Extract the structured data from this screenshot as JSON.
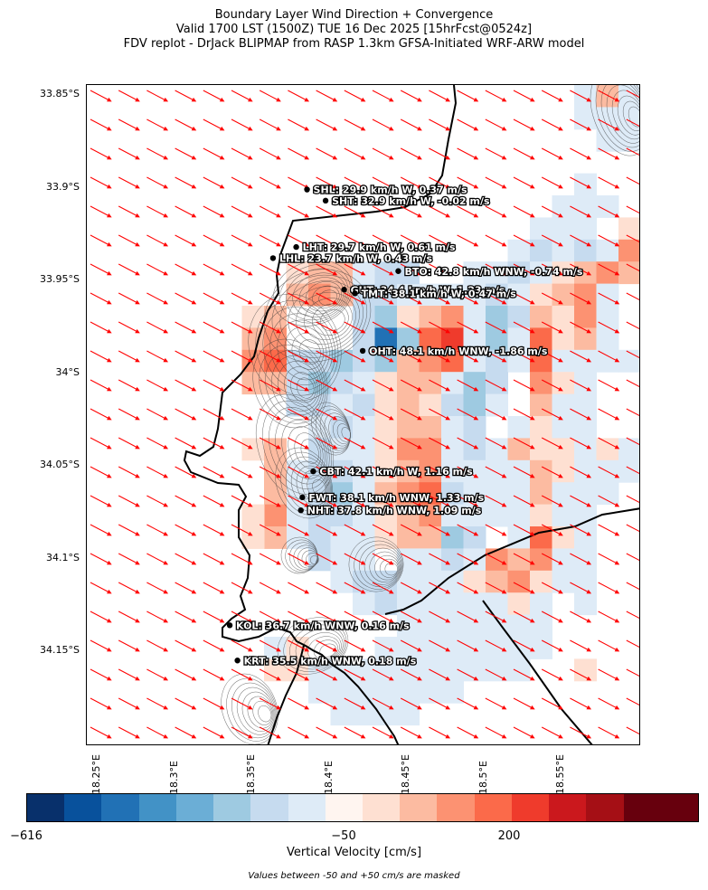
{
  "title": {
    "line1": "Boundary Layer Wind Direction + Convergence",
    "line2": "Valid 1700 LST (1500Z) TUE 16 Dec 2025 [15hrFcst@0524z]",
    "line3": "FDV replot - DrJack BLIPMAP from RASP 1.3km GFSA-Initiated WRF-ARW model"
  },
  "lat_labels": [
    "33.85°S",
    "33.9°S",
    "33.95°S",
    "34°S",
    "34.05°S",
    "34.1°S",
    "34.15°S"
  ],
  "lon_labels": [
    "18.25°E",
    "18.3°E",
    "18.35°E",
    "18.4°E",
    "18.45°E",
    "18.5°E",
    "18.55°E"
  ],
  "stations": [
    {
      "label": "SHL: 29.9 km/h W, 0.37 m/s",
      "lat": -33.901,
      "lon": 18.386
    },
    {
      "label": "SHT: 32.9 km/h W, -0.02 m/s",
      "lat": -33.907,
      "lon": 18.398
    },
    {
      "label": "LHT: 29.7 km/h W, 0.61 m/s",
      "lat": -33.932,
      "lon": 18.379
    },
    {
      "label": "LHL: 23.7 km/h W, 0.43 m/s",
      "lat": -33.938,
      "lon": 18.364
    },
    {
      "label": "BTO: 42.8 km/h WNW, -0.74 m/s",
      "lat": -33.945,
      "lon": 18.445
    },
    {
      "label": "GUT: 34.4 km/h W, 1.23 m/s",
      "lat": -33.955,
      "lon": 18.41
    },
    {
      "label": "TMT: 38.1 km/h W, 0.47 m/s",
      "lat": -33.957,
      "lon": 18.417
    },
    {
      "label": "OHT: 48.1 km/h WNW, -1.86 m/s",
      "lat": -33.988,
      "lon": 18.422
    },
    {
      "label": "CBT: 42.1 km/h W, 1.16 m/s",
      "lat": -34.053,
      "lon": 18.39
    },
    {
      "label": "FWT: 38.1 km/h WNW, 1.33 m/s",
      "lat": -34.067,
      "lon": 18.383
    },
    {
      "label": "NHT: 37.8 km/h WNW, 1.09 m/s",
      "lat": -34.074,
      "lon": 18.382
    },
    {
      "label": "KOL: 36.7 km/h WNW, 0.16 m/s",
      "lat": -34.136,
      "lon": 18.336
    },
    {
      "label": "KRT: 35.5 km/h WNW, 0.18 m/s",
      "lat": -34.155,
      "lon": 18.341
    }
  ],
  "wind": {
    "arrow_color": "#ff0000",
    "direction": "WNW"
  },
  "colorbar": {
    "label": "Vertical Velocity [cm/s]",
    "ticks": [
      "−616",
      "−50",
      "200"
    ],
    "colors": [
      "#08306b",
      "#08519c",
      "#2171b5",
      "#4292c6",
      "#6baed6",
      "#9ecae1",
      "#c6dbef",
      "#deebf7",
      "#fff5f0",
      "#fee0d2",
      "#fcbba1",
      "#fc9272",
      "#fb6a4a",
      "#ef3b2c",
      "#cb181d",
      "#a50f15",
      "#67000d",
      "#67000d"
    ],
    "note": "Values between -50 and +50 cm/s are masked"
  }
}
